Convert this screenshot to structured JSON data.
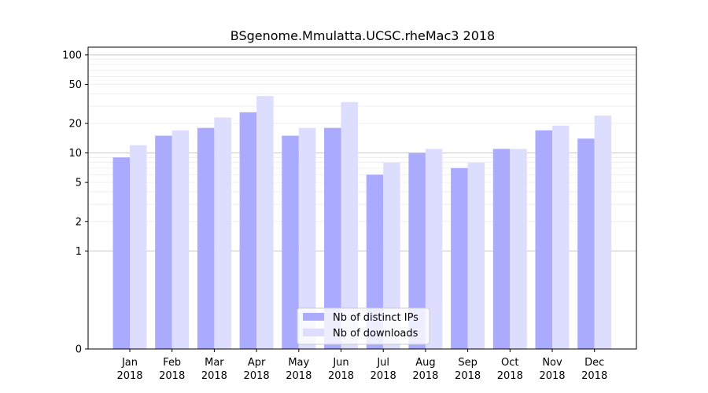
{
  "chart_data": {
    "type": "bar",
    "title": "BSgenome.Mmulatta.UCSC.rheMac3 2018",
    "xlabel": "",
    "ylabel": "",
    "y_scale": "symlog",
    "ylim": [
      0,
      120
    ],
    "y_ticks": [
      0,
      1,
      2,
      5,
      10,
      20,
      50,
      100
    ],
    "grid": true,
    "legend_position": "bottom-center",
    "categories": [
      {
        "month": "Jan",
        "year": "2018"
      },
      {
        "month": "Feb",
        "year": "2018"
      },
      {
        "month": "Mar",
        "year": "2018"
      },
      {
        "month": "Apr",
        "year": "2018"
      },
      {
        "month": "May",
        "year": "2018"
      },
      {
        "month": "Jun",
        "year": "2018"
      },
      {
        "month": "Jul",
        "year": "2018"
      },
      {
        "month": "Aug",
        "year": "2018"
      },
      {
        "month": "Sep",
        "year": "2018"
      },
      {
        "month": "Oct",
        "year": "2018"
      },
      {
        "month": "Nov",
        "year": "2018"
      },
      {
        "month": "Dec",
        "year": "2018"
      }
    ],
    "series": [
      {
        "name": "Nb of distinct IPs",
        "color": "#aaaaff",
        "values": [
          9,
          15,
          18,
          26,
          15,
          18,
          6,
          10,
          7,
          11,
          17,
          14
        ]
      },
      {
        "name": "Nb of downloads",
        "color": "#ddddff",
        "values": [
          12,
          17,
          23,
          38,
          18,
          33,
          8,
          11,
          8,
          11,
          19,
          24
        ]
      }
    ]
  }
}
